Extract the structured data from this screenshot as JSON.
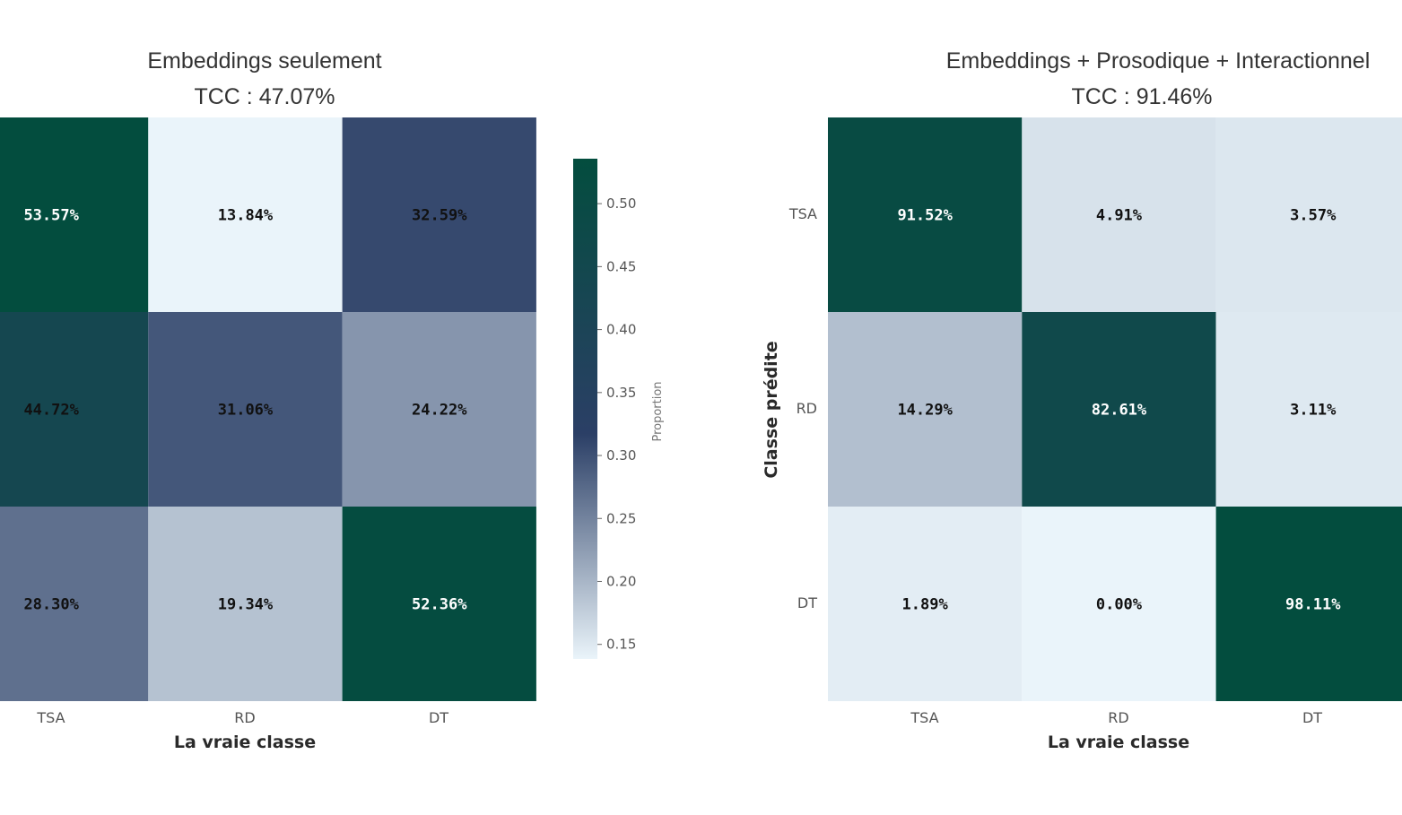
{
  "chart_data": [
    {
      "type": "heatmap",
      "title": "Embeddings seulement",
      "subtitle": "TCC   : 47.07%",
      "xlabel": "La vraie classe",
      "ylabel": "",
      "x_categories": [
        "TSA",
        "RD",
        "DT"
      ],
      "y_categories": [],
      "values": [
        [
          0.5357,
          0.1384,
          0.3259
        ],
        [
          0.4472,
          0.3106,
          0.2422
        ],
        [
          0.283,
          0.1934,
          0.5236
        ]
      ],
      "cell_labels": [
        [
          "53.57%",
          "13.84%",
          "32.59%"
        ],
        [
          "44.72%",
          "31.06%",
          "24.22%"
        ],
        [
          "28.30%",
          "19.34%",
          "52.36%"
        ]
      ],
      "colorbar": {
        "label": "Proportion",
        "ticks": [
          "0.50",
          "0.45",
          "0.40",
          "0.35",
          "0.30",
          "0.25",
          "0.20",
          "0.15"
        ],
        "range": [
          0.1384,
          0.5357
        ],
        "colors": [
          "#eaf4fa",
          "#2b3f66",
          "#034d3e"
        ]
      }
    },
    {
      "type": "heatmap",
      "title": "Embeddings + Prosodique + Interactionnel",
      "subtitle": "TCC   : 91.46%",
      "xlabel": "La vraie classe",
      "ylabel": "Classe prédite",
      "x_categories": [
        "TSA",
        "RD",
        "DT"
      ],
      "y_categories": [
        "TSA",
        "RD",
        "DT"
      ],
      "values": [
        [
          0.9152,
          0.0491,
          0.0357
        ],
        [
          0.1429,
          0.8261,
          0.0311
        ],
        [
          0.0189,
          0.0,
          0.9811
        ]
      ],
      "cell_labels": [
        [
          "91.52%",
          "4.91%",
          "3.57%"
        ],
        [
          "14.29%",
          "82.61%",
          "3.11%"
        ],
        [
          "1.89%",
          "0.00%",
          "98.11%"
        ]
      ],
      "colors": [
        "#eaf4fa",
        "#2b3f66",
        "#034d3e"
      ]
    }
  ]
}
